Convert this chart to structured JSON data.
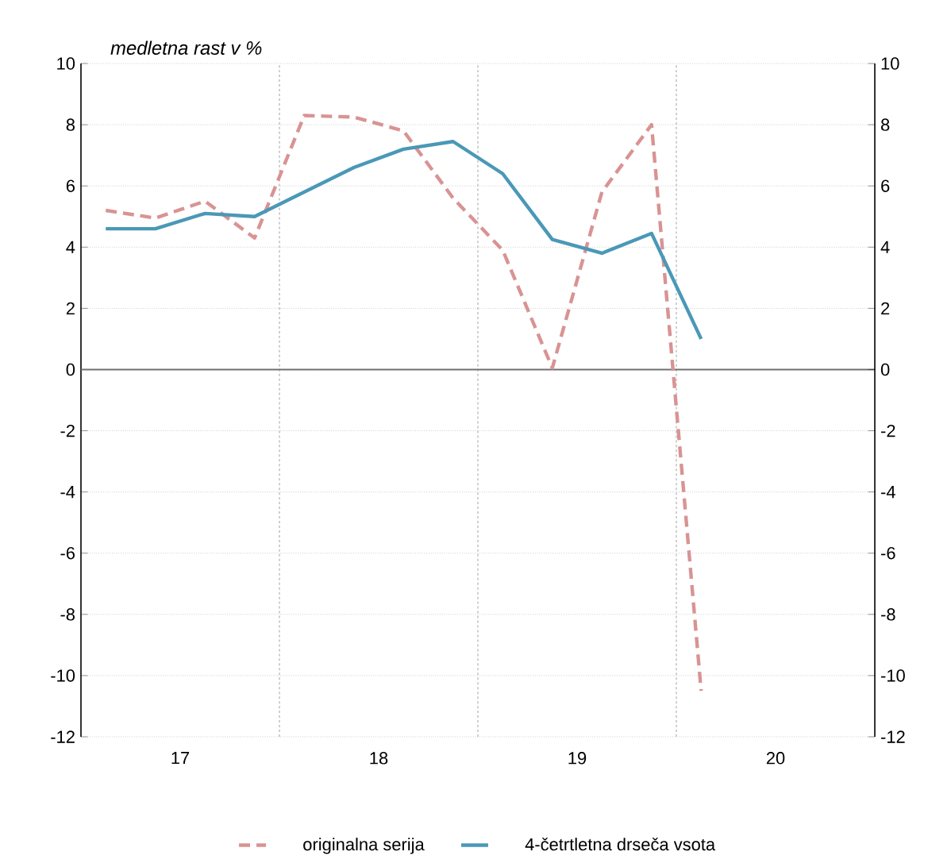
{
  "chart_data": {
    "type": "line",
    "title": "medletna rast v %",
    "x": [
      17.125,
      17.375,
      17.625,
      17.875,
      18.125,
      18.375,
      18.625,
      18.875,
      19.125,
      19.375,
      19.625,
      19.875,
      20.125
    ],
    "series": [
      {
        "name": "originalna serija",
        "color": "#d99393",
        "line_style": "dashed",
        "values": [
          5.2,
          4.95,
          5.5,
          4.3,
          8.3,
          8.25,
          7.8,
          5.6,
          3.9,
          0.05,
          5.8,
          8.0,
          -10.5
        ]
      },
      {
        "name": "4-četrtletna drseča vsota",
        "color": "#4a98b7",
        "line_style": "solid",
        "values": [
          4.6,
          4.6,
          5.1,
          5.0,
          5.8,
          6.6,
          7.2,
          7.45,
          6.4,
          4.25,
          3.8,
          4.45,
          1.0
        ]
      }
    ],
    "xlim": [
      17,
      21
    ],
    "xticks": [
      {
        "value": 17.5,
        "label": "17"
      },
      {
        "value": 18.5,
        "label": "18"
      },
      {
        "value": 19.5,
        "label": "19"
      },
      {
        "value": 20.5,
        "label": "20"
      }
    ],
    "ylim": [
      -12,
      10
    ],
    "yticks": [
      -12,
      -10,
      -8,
      -6,
      -4,
      -2,
      0,
      2,
      4,
      6,
      8,
      10
    ],
    "y2lim": [
      -12,
      10
    ],
    "y2ticks": [
      -12,
      -10,
      -8,
      -6,
      -4,
      -2,
      0,
      2,
      4,
      6,
      8,
      10
    ],
    "ref_lines": [
      {
        "axis": "x",
        "value": 18,
        "color": "#b0b0b0",
        "line_style": "dotted"
      },
      {
        "axis": "x",
        "value": 19,
        "color": "#b0b0b0",
        "line_style": "dotted"
      },
      {
        "axis": "x",
        "value": 20,
        "color": "#b0b0b0",
        "line_style": "dotted"
      },
      {
        "axis": "y",
        "value": 0,
        "color": "#707070",
        "line_style": "solid"
      }
    ],
    "grid": "y",
    "legend": "bottom",
    "marker": "none"
  }
}
